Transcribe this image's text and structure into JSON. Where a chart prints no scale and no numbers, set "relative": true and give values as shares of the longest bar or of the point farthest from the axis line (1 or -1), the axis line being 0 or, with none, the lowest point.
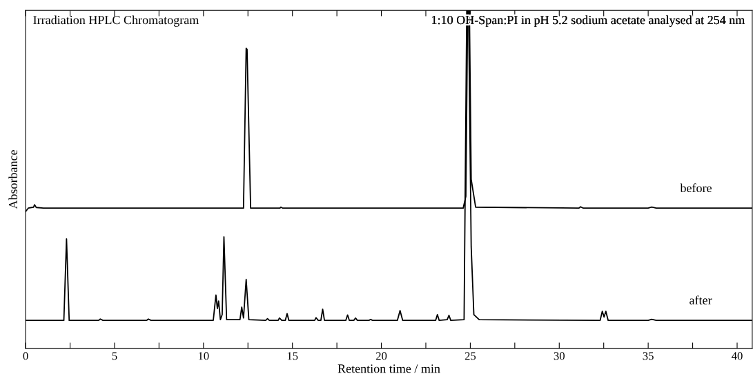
{
  "chart_data": {
    "type": "line",
    "relative": true,
    "title": "Irradiation HPLC Chromatogram",
    "subtitle": "1:10 OH-Span:PI in pH 5.2 sodium acetate analysed at 254 nm",
    "xlabel": "Retention time / min",
    "ylabel": "Absorbance",
    "xlim": [
      0,
      40.85
    ],
    "xticks": [
      0,
      {
        "value": 2.5,
        "label": null
      },
      5,
      {
        "value": 7.5,
        "label": null
      },
      10,
      {
        "value": 12.5,
        "label": null
      },
      15,
      {
        "value": 17.5,
        "label": null
      },
      20,
      {
        "value": 22.5,
        "label": null
      },
      25,
      {
        "value": 27.5,
        "label": null
      },
      30,
      {
        "value": 32.5,
        "label": null
      },
      35,
      {
        "value": 37.5,
        "label": null
      },
      40
    ],
    "tick_labels": "x",
    "grid": false,
    "legend": false,
    "marker": "none",
    "line_style": "solid",
    "series": [
      {
        "name": "before",
        "color": "#000000",
        "x": [
          0,
          0.15,
          0.45,
          0.5,
          0.6,
          1.0,
          12.25,
          12.4,
          12.45,
          12.65,
          14.3,
          14.35,
          14.45,
          24.6,
          24.75,
          24.85,
          24.95,
          25.05,
          25.3,
          31.1,
          31.2,
          31.35,
          35.0,
          35.2,
          35.45,
          40.85
        ],
        "values": [
          0.405,
          0.415,
          0.418,
          0.425,
          0.417,
          0.415,
          0.415,
          0.888,
          0.885,
          0.415,
          0.415,
          0.418,
          0.415,
          0.415,
          0.45,
          1.0,
          1.0,
          0.5,
          0.418,
          0.415,
          0.419,
          0.415,
          0.415,
          0.418,
          0.415,
          0.415
        ]
      },
      {
        "name": "after",
        "color": "#000000",
        "x": [
          0,
          2.15,
          2.3,
          2.45,
          4.1,
          4.2,
          4.35,
          6.8,
          6.9,
          7.05,
          10.55,
          10.7,
          10.78,
          10.85,
          10.95,
          11.05,
          11.15,
          11.3,
          12.05,
          12.15,
          12.25,
          12.4,
          12.55,
          13.5,
          13.6,
          13.7,
          14.2,
          14.27,
          14.4,
          14.6,
          14.7,
          14.8,
          16.25,
          16.33,
          16.45,
          16.6,
          16.7,
          16.8,
          18.0,
          18.1,
          18.2,
          18.45,
          18.55,
          18.65,
          19.3,
          19.4,
          19.5,
          20.9,
          21.05,
          21.2,
          23.05,
          23.15,
          23.25,
          23.7,
          23.8,
          23.9,
          24.65,
          24.8,
          24.9,
          25.05,
          25.2,
          25.5,
          32.3,
          32.42,
          32.52,
          32.62,
          32.75,
          35.0,
          35.2,
          35.45,
          40.85
        ],
        "values": [
          0.083,
          0.083,
          0.324,
          0.083,
          0.083,
          0.087,
          0.083,
          0.083,
          0.087,
          0.083,
          0.083,
          0.158,
          0.118,
          0.14,
          0.085,
          0.1,
          0.33,
          0.085,
          0.085,
          0.122,
          0.09,
          0.204,
          0.085,
          0.083,
          0.088,
          0.083,
          0.083,
          0.09,
          0.083,
          0.083,
          0.103,
          0.083,
          0.083,
          0.091,
          0.083,
          0.083,
          0.116,
          0.083,
          0.083,
          0.099,
          0.083,
          0.083,
          0.09,
          0.083,
          0.083,
          0.086,
          0.083,
          0.083,
          0.112,
          0.083,
          0.083,
          0.1,
          0.083,
          0.085,
          0.098,
          0.083,
          0.085,
          1.0,
          1.0,
          0.3,
          0.1,
          0.085,
          0.083,
          0.11,
          0.093,
          0.11,
          0.083,
          0.083,
          0.086,
          0.083,
          0.083
        ]
      }
    ]
  }
}
